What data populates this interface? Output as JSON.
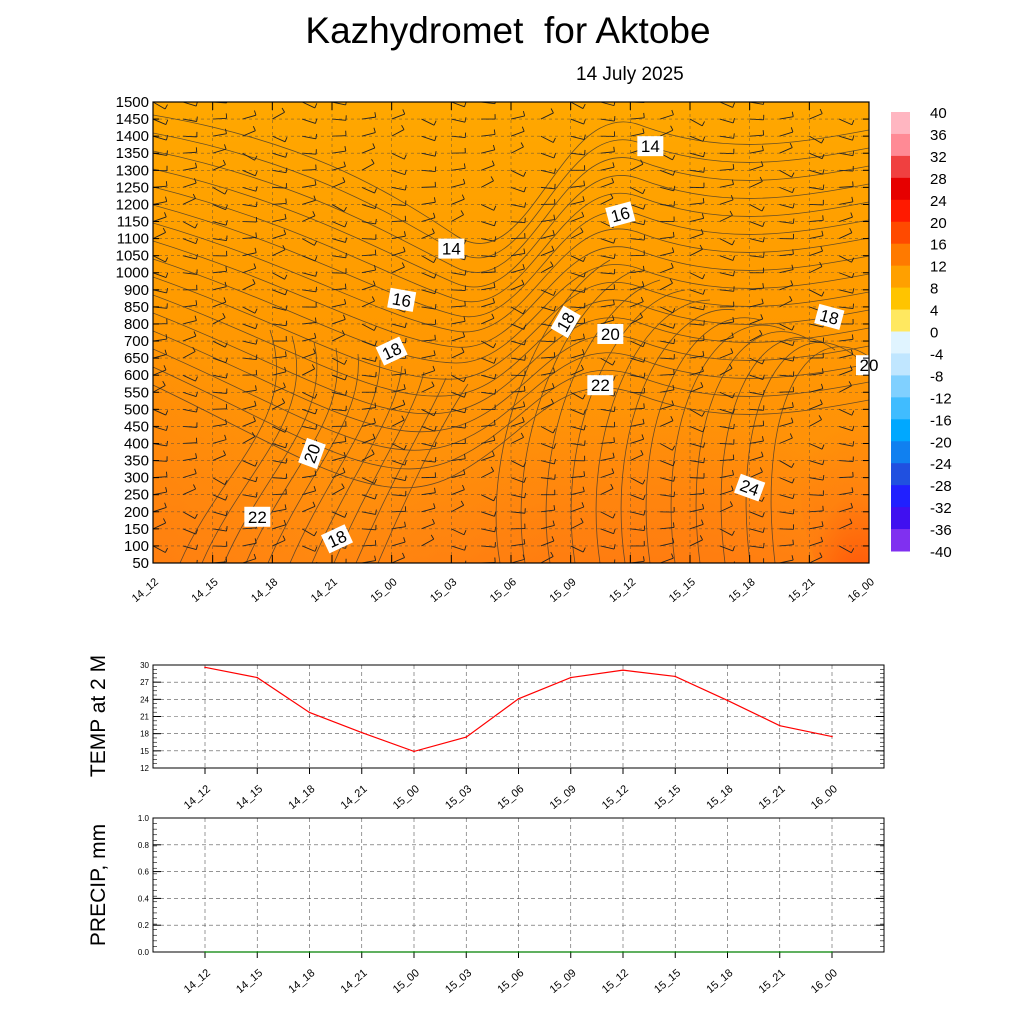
{
  "title": "Kazhydromet  for Aktobe",
  "subtitle": "14 July 2025",
  "time_labels": [
    "14_12",
    "14_15",
    "14_18",
    "14_21",
    "15_00",
    "15_03",
    "15_06",
    "15_09",
    "15_12",
    "15_15",
    "15_18",
    "15_21",
    "16_00"
  ],
  "chart_data": [
    {
      "type": "heatmap",
      "name": "temperature-cross-section",
      "x": [
        "14_12",
        "14_15",
        "14_18",
        "14_21",
        "15_00",
        "15_03",
        "15_06",
        "15_09",
        "15_12",
        "15_15",
        "15_18",
        "15_21",
        "16_00"
      ],
      "y_ticks": [
        "1500",
        "1450",
        "1400",
        "1350",
        "1300",
        "1250",
        "1200",
        "1150",
        "1100",
        "1050",
        "1000",
        "900",
        "850",
        "800",
        "700",
        "650",
        "600",
        "550",
        "500",
        "450",
        "400",
        "350",
        "300",
        "250",
        "200",
        "150",
        "100",
        "50"
      ],
      "colorbar": {
        "ticks": [
          "40",
          "36",
          "32",
          "28",
          "24",
          "20",
          "16",
          "12",
          "8",
          "4",
          "0",
          "-4",
          "-8",
          "-12",
          "-16",
          "-20",
          "-24",
          "-28",
          "-32",
          "-36",
          "-40"
        ]
      },
      "contour_labels": [
        {
          "text": "14",
          "time": "15_12",
          "level": "1400"
        },
        {
          "text": "14",
          "time": "15_03",
          "level": "1100"
        },
        {
          "text": "16",
          "time": "15_12",
          "level": "1200"
        },
        {
          "text": "16",
          "time": "15_00",
          "level": "900"
        },
        {
          "text": "18",
          "time": "15_09",
          "level": "850"
        },
        {
          "text": "18",
          "time": "15_21",
          "level": "850"
        },
        {
          "text": "20",
          "time": "15_12",
          "level": "800"
        },
        {
          "text": "18",
          "time": "15_00",
          "level": "700"
        },
        {
          "text": "20",
          "time": "16_00",
          "level": "600"
        },
        {
          "text": "22",
          "time": "15_12",
          "level": "600"
        },
        {
          "text": "20",
          "time": "14_21",
          "level": "400"
        },
        {
          "text": "24",
          "time": "15_18",
          "level": "300"
        },
        {
          "text": "22",
          "time": "14_18",
          "level": "200"
        },
        {
          "text": "18",
          "time": "14_21",
          "level": "150"
        }
      ]
    },
    {
      "type": "line",
      "name": "temp-2m",
      "ylabel": "TEMP at 2 M",
      "categories": [
        "14_12",
        "14_15",
        "14_18",
        "14_21",
        "15_00",
        "15_03",
        "15_06",
        "15_09",
        "15_12",
        "15_15",
        "15_18",
        "15_21",
        "16_00"
      ],
      "values": [
        29.6,
        27.8,
        21.7,
        18.2,
        14.9,
        17.4,
        24.1,
        27.8,
        29.1,
        28.0,
        23.8,
        19.4,
        17.5
      ],
      "yticks": [
        "30",
        "27",
        "24",
        "21",
        "18",
        "15",
        "12"
      ],
      "ylim": [
        12,
        30
      ],
      "line_color": "#ff0000",
      "grid": true
    },
    {
      "type": "line",
      "name": "precip",
      "ylabel": "PRECIP, mm",
      "categories": [
        "14_12",
        "14_15",
        "14_18",
        "14_21",
        "15_00",
        "15_03",
        "15_06",
        "15_09",
        "15_12",
        "15_15",
        "15_18",
        "15_21",
        "16_00"
      ],
      "values": [
        0,
        0,
        0,
        0,
        0,
        0,
        0,
        0,
        0,
        0,
        0,
        0,
        0
      ],
      "yticks": [
        "1.0",
        "0.8",
        "0.6",
        "0.4",
        "0.2",
        "0.0"
      ],
      "ylim": [
        0,
        1
      ],
      "line_color": "#008000",
      "grid": true
    }
  ]
}
